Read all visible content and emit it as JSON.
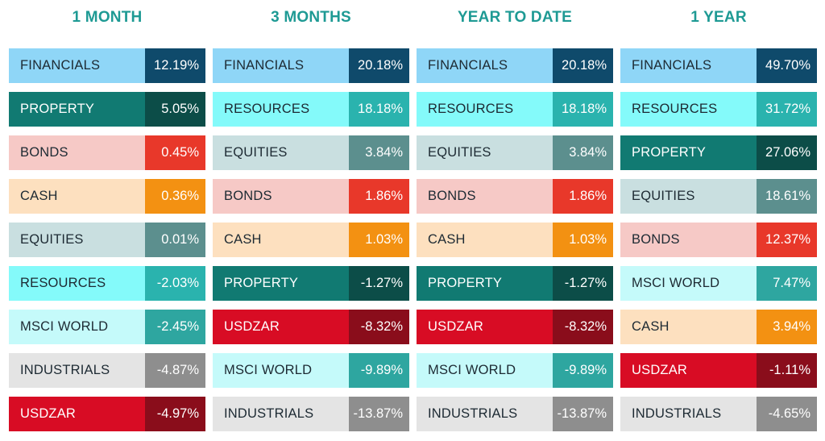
{
  "chart_data": {
    "type": "table",
    "categories_style": {
      "FINANCIALS": {
        "bg": "#8fd6f7",
        "fg": "#1d2a33",
        "val": "#0f4a6b"
      },
      "PROPERTY": {
        "bg": "#117a72",
        "fg": "#ffffff",
        "val": "#0c4d48"
      },
      "BONDS": {
        "bg": "#f6c9c6",
        "fg": "#1d2a33",
        "val": "#e8382a"
      },
      "CASH": {
        "bg": "#fde0bf",
        "fg": "#1d2a33",
        "val": "#f39112"
      },
      "EQUITIES": {
        "bg": "#c9dfe0",
        "fg": "#1d2a33",
        "val": "#5c8f8e"
      },
      "RESOURCES": {
        "bg": "#84fafa",
        "fg": "#1d2a33",
        "val": "#2ab3ae"
      },
      "MSCI WORLD": {
        "bg": "#c5fafa",
        "fg": "#1d2a33",
        "val": "#2ea6a0"
      },
      "INDUSTRIALS": {
        "bg": "#e4e4e4",
        "fg": "#1d2a33",
        "val": "#8e8e8e"
      },
      "USDZAR": {
        "bg": "#d80c24",
        "fg": "#ffffff",
        "val": "#8a0d1b"
      }
    },
    "columns": [
      {
        "title": "1 MONTH",
        "rows": [
          {
            "name": "FINANCIALS",
            "value": "12.19%"
          },
          {
            "name": "PROPERTY",
            "value": "5.05%"
          },
          {
            "name": "BONDS",
            "value": "0.45%"
          },
          {
            "name": "CASH",
            "value": "0.36%"
          },
          {
            "name": "EQUITIES",
            "value": "0.01%"
          },
          {
            "name": "RESOURCES",
            "value": "-2.03%"
          },
          {
            "name": "MSCI WORLD",
            "value": "-2.45%"
          },
          {
            "name": "INDUSTRIALS",
            "value": "-4.87%"
          },
          {
            "name": "USDZAR",
            "value": "-4.97%"
          }
        ]
      },
      {
        "title": "3 MONTHS",
        "rows": [
          {
            "name": "FINANCIALS",
            "value": "20.18%"
          },
          {
            "name": "RESOURCES",
            "value": "18.18%"
          },
          {
            "name": "EQUITIES",
            "value": "3.84%"
          },
          {
            "name": "BONDS",
            "value": "1.86%"
          },
          {
            "name": "CASH",
            "value": "1.03%"
          },
          {
            "name": "PROPERTY",
            "value": "-1.27%"
          },
          {
            "name": "USDZAR",
            "value": "-8.32%"
          },
          {
            "name": "MSCI WORLD",
            "value": "-9.89%"
          },
          {
            "name": "INDUSTRIALS",
            "value": "-13.87%"
          }
        ]
      },
      {
        "title": "YEAR TO DATE",
        "rows": [
          {
            "name": "FINANCIALS",
            "value": "20.18%"
          },
          {
            "name": "RESOURCES",
            "value": "18.18%"
          },
          {
            "name": "EQUITIES",
            "value": "3.84%"
          },
          {
            "name": "BONDS",
            "value": "1.86%"
          },
          {
            "name": "CASH",
            "value": "1.03%"
          },
          {
            "name": "PROPERTY",
            "value": "-1.27%"
          },
          {
            "name": "USDZAR",
            "value": "-8.32%"
          },
          {
            "name": "MSCI WORLD",
            "value": "-9.89%"
          },
          {
            "name": "INDUSTRIALS",
            "value": "-13.87%"
          }
        ]
      },
      {
        "title": "1 YEAR",
        "rows": [
          {
            "name": "FINANCIALS",
            "value": "49.70%"
          },
          {
            "name": "RESOURCES",
            "value": "31.72%"
          },
          {
            "name": "PROPERTY",
            "value": "27.06%"
          },
          {
            "name": "EQUITIES",
            "value": "18.61%"
          },
          {
            "name": "BONDS",
            "value": "12.37%"
          },
          {
            "name": "MSCI WORLD",
            "value": "7.47%"
          },
          {
            "name": "CASH",
            "value": "3.94%"
          },
          {
            "name": "USDZAR",
            "value": "-1.11%"
          },
          {
            "name": "INDUSTRIALS",
            "value": "-4.65%"
          }
        ]
      }
    ]
  }
}
